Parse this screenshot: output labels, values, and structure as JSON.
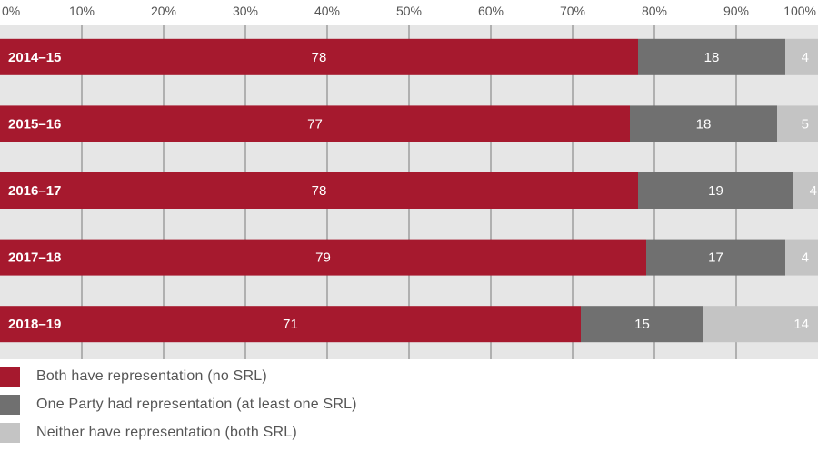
{
  "chart_data": {
    "type": "bar",
    "orientation": "horizontal",
    "stacked": true,
    "categories": [
      "2014–15",
      "2015–16",
      "2016–17",
      "2017–18",
      "2018–19"
    ],
    "series": [
      {
        "name": "Both have representation (no SRL)",
        "values": [
          78,
          77,
          78,
          79,
          71
        ],
        "color": "#a6192e"
      },
      {
        "name": "One Party had representation (at least one SRL)",
        "values": [
          18,
          18,
          19,
          17,
          15
        ],
        "color": "#707070"
      },
      {
        "name": "Neither have representation (both SRL)",
        "values": [
          4,
          5,
          4,
          4,
          14
        ],
        "color": "#c4c4c4"
      }
    ],
    "x_ticks": [
      "0%",
      "10%",
      "20%",
      "30%",
      "40%",
      "50%",
      "60%",
      "70%",
      "80%",
      "90%",
      "100%"
    ],
    "xlim": [
      0,
      100
    ],
    "grid": "vertical",
    "legend_position": "bottom-left",
    "title": "",
    "xlabel": "",
    "ylabel": ""
  }
}
